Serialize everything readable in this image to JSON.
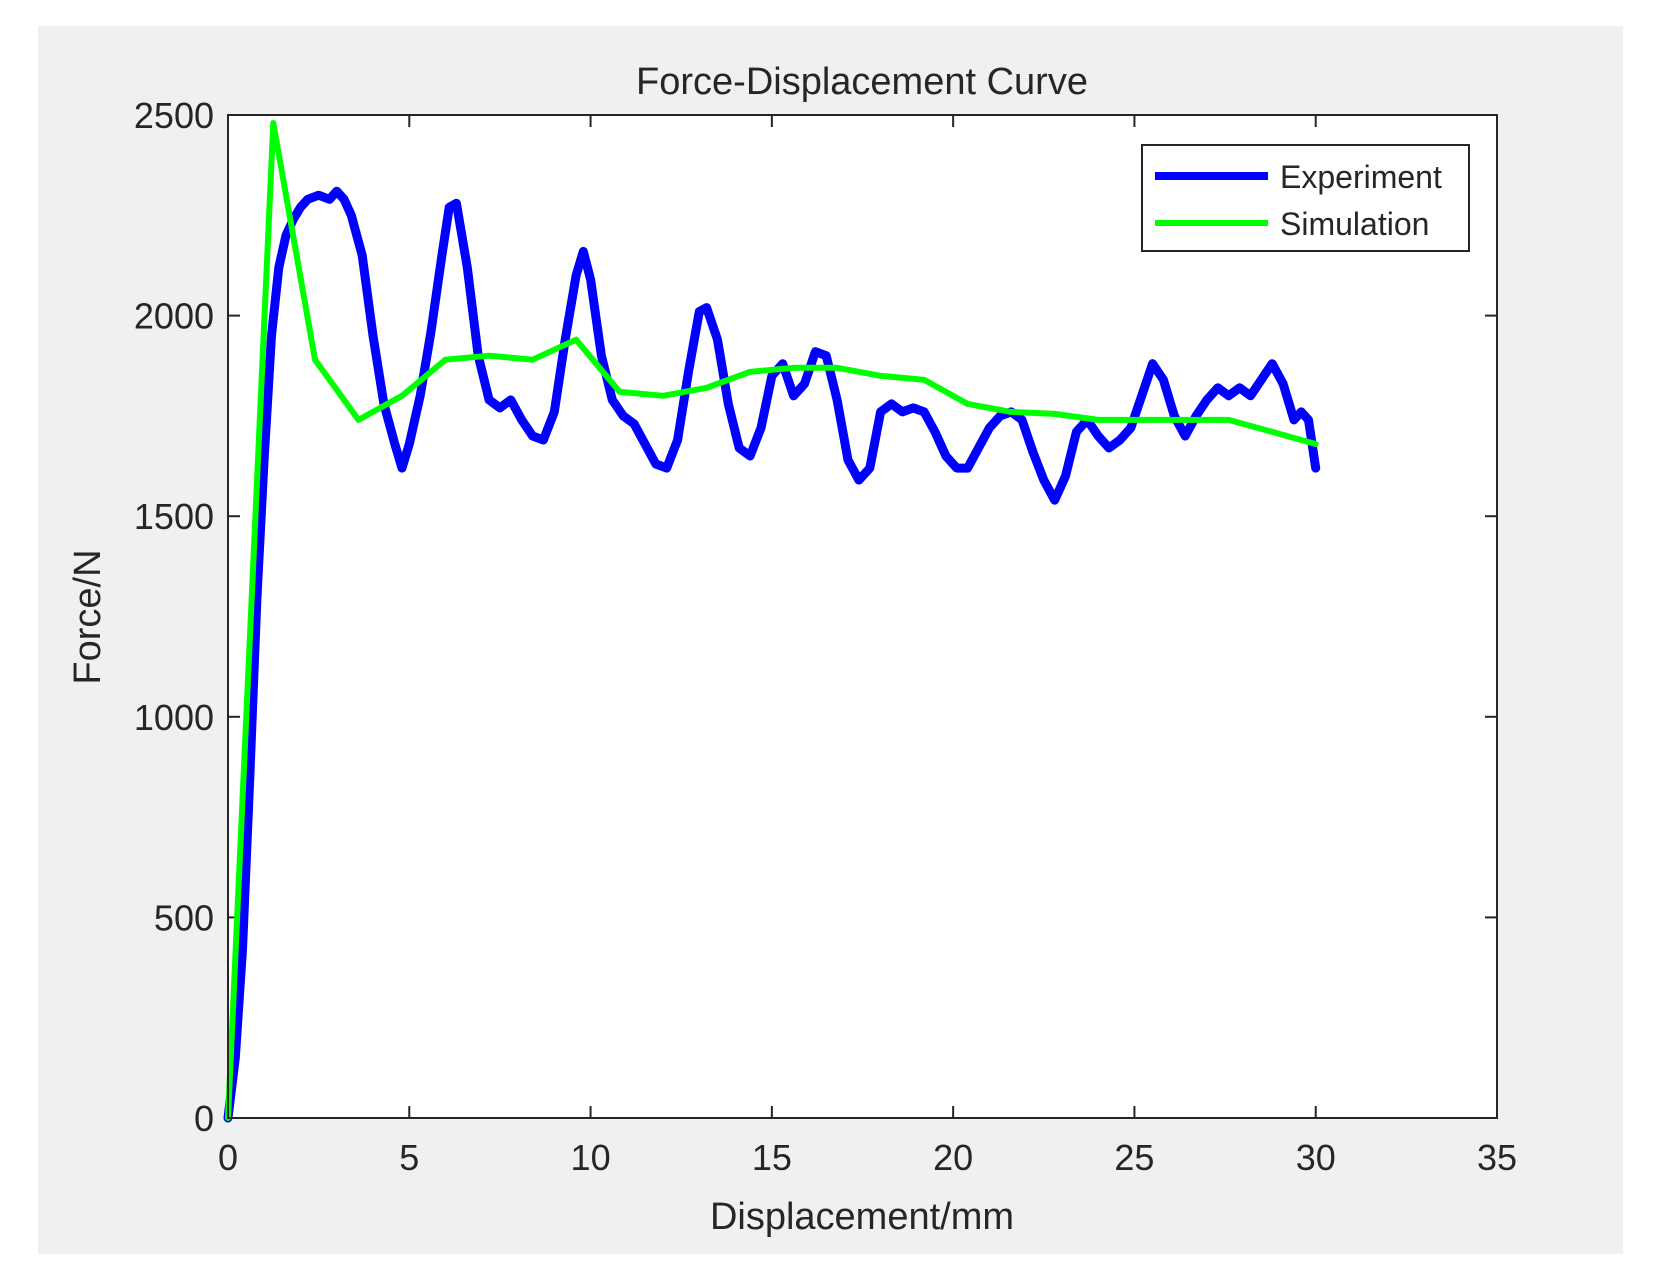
{
  "chart_data": {
    "type": "line",
    "title": "Force-Displacement Curve",
    "xlabel": "Displacement/mm",
    "ylabel": "Force/N",
    "xlim": [
      0,
      35
    ],
    "ylim": [
      0,
      2500
    ],
    "xticks": [
      0,
      5,
      10,
      15,
      20,
      25,
      30,
      35
    ],
    "yticks": [
      0,
      500,
      1000,
      1500,
      2000,
      2500
    ],
    "grid": false,
    "legend_position": "top-right",
    "background_color": "#f0f0f0",
    "series": [
      {
        "name": "Experiment",
        "color": "#0000ff",
        "points": [
          [
            0.0,
            0
          ],
          [
            0.2,
            150
          ],
          [
            0.4,
            420
          ],
          [
            0.6,
            850
          ],
          [
            0.8,
            1300
          ],
          [
            1.0,
            1650
          ],
          [
            1.2,
            1950
          ],
          [
            1.4,
            2120
          ],
          [
            1.6,
            2200
          ],
          [
            1.8,
            2240
          ],
          [
            2.0,
            2270
          ],
          [
            2.2,
            2290
          ],
          [
            2.5,
            2300
          ],
          [
            2.8,
            2290
          ],
          [
            3.0,
            2310
          ],
          [
            3.2,
            2290
          ],
          [
            3.4,
            2250
          ],
          [
            3.7,
            2150
          ],
          [
            4.0,
            1950
          ],
          [
            4.3,
            1780
          ],
          [
            4.6,
            1680
          ],
          [
            4.8,
            1620
          ],
          [
            5.0,
            1680
          ],
          [
            5.3,
            1800
          ],
          [
            5.6,
            1960
          ],
          [
            5.9,
            2150
          ],
          [
            6.1,
            2270
          ],
          [
            6.3,
            2280
          ],
          [
            6.6,
            2120
          ],
          [
            6.9,
            1900
          ],
          [
            7.2,
            1790
          ],
          [
            7.5,
            1770
          ],
          [
            7.8,
            1790
          ],
          [
            8.1,
            1740
          ],
          [
            8.4,
            1700
          ],
          [
            8.7,
            1690
          ],
          [
            9.0,
            1760
          ],
          [
            9.3,
            1940
          ],
          [
            9.6,
            2100
          ],
          [
            9.8,
            2160
          ],
          [
            10.0,
            2090
          ],
          [
            10.3,
            1900
          ],
          [
            10.6,
            1790
          ],
          [
            10.9,
            1750
          ],
          [
            11.2,
            1730
          ],
          [
            11.5,
            1680
          ],
          [
            11.8,
            1630
          ],
          [
            12.1,
            1620
          ],
          [
            12.4,
            1690
          ],
          [
            12.7,
            1860
          ],
          [
            13.0,
            2010
          ],
          [
            13.2,
            2020
          ],
          [
            13.5,
            1940
          ],
          [
            13.8,
            1780
          ],
          [
            14.1,
            1670
          ],
          [
            14.4,
            1650
          ],
          [
            14.7,
            1720
          ],
          [
            15.0,
            1850
          ],
          [
            15.3,
            1880
          ],
          [
            15.6,
            1800
          ],
          [
            15.9,
            1830
          ],
          [
            16.2,
            1910
          ],
          [
            16.5,
            1900
          ],
          [
            16.8,
            1790
          ],
          [
            17.1,
            1640
          ],
          [
            17.4,
            1590
          ],
          [
            17.7,
            1620
          ],
          [
            18.0,
            1760
          ],
          [
            18.3,
            1780
          ],
          [
            18.6,
            1760
          ],
          [
            18.9,
            1770
          ],
          [
            19.2,
            1760
          ],
          [
            19.5,
            1710
          ],
          [
            19.8,
            1650
          ],
          [
            20.1,
            1620
          ],
          [
            20.4,
            1620
          ],
          [
            20.7,
            1670
          ],
          [
            21.0,
            1720
          ],
          [
            21.3,
            1750
          ],
          [
            21.6,
            1760
          ],
          [
            21.9,
            1740
          ],
          [
            22.2,
            1660
          ],
          [
            22.5,
            1590
          ],
          [
            22.8,
            1540
          ],
          [
            23.1,
            1600
          ],
          [
            23.4,
            1710
          ],
          [
            23.7,
            1740
          ],
          [
            24.0,
            1700
          ],
          [
            24.3,
            1670
          ],
          [
            24.6,
            1690
          ],
          [
            24.9,
            1720
          ],
          [
            25.2,
            1800
          ],
          [
            25.5,
            1880
          ],
          [
            25.8,
            1840
          ],
          [
            26.1,
            1750
          ],
          [
            26.4,
            1700
          ],
          [
            26.7,
            1750
          ],
          [
            27.0,
            1790
          ],
          [
            27.3,
            1820
          ],
          [
            27.6,
            1800
          ],
          [
            27.9,
            1820
          ],
          [
            28.2,
            1800
          ],
          [
            28.5,
            1840
          ],
          [
            28.8,
            1880
          ],
          [
            29.1,
            1830
          ],
          [
            29.4,
            1740
          ],
          [
            29.6,
            1760
          ],
          [
            29.8,
            1740
          ],
          [
            30.0,
            1620
          ]
        ]
      },
      {
        "name": "Simulation",
        "color": "#00ff00",
        "points": [
          [
            0.0,
            0
          ],
          [
            1.25,
            2480
          ],
          [
            2.4,
            1890
          ],
          [
            3.6,
            1740
          ],
          [
            4.8,
            1800
          ],
          [
            6.0,
            1890
          ],
          [
            7.2,
            1900
          ],
          [
            8.4,
            1890
          ],
          [
            9.6,
            1940
          ],
          [
            10.8,
            1810
          ],
          [
            12.0,
            1800
          ],
          [
            13.2,
            1820
          ],
          [
            14.4,
            1860
          ],
          [
            15.6,
            1870
          ],
          [
            16.8,
            1870
          ],
          [
            18.0,
            1850
          ],
          [
            19.2,
            1840
          ],
          [
            20.4,
            1780
          ],
          [
            21.6,
            1760
          ],
          [
            22.8,
            1755
          ],
          [
            24.0,
            1740
          ],
          [
            25.2,
            1740
          ],
          [
            26.4,
            1740
          ],
          [
            27.6,
            1740
          ],
          [
            28.8,
            1710
          ],
          [
            30.0,
            1680
          ]
        ]
      }
    ]
  }
}
